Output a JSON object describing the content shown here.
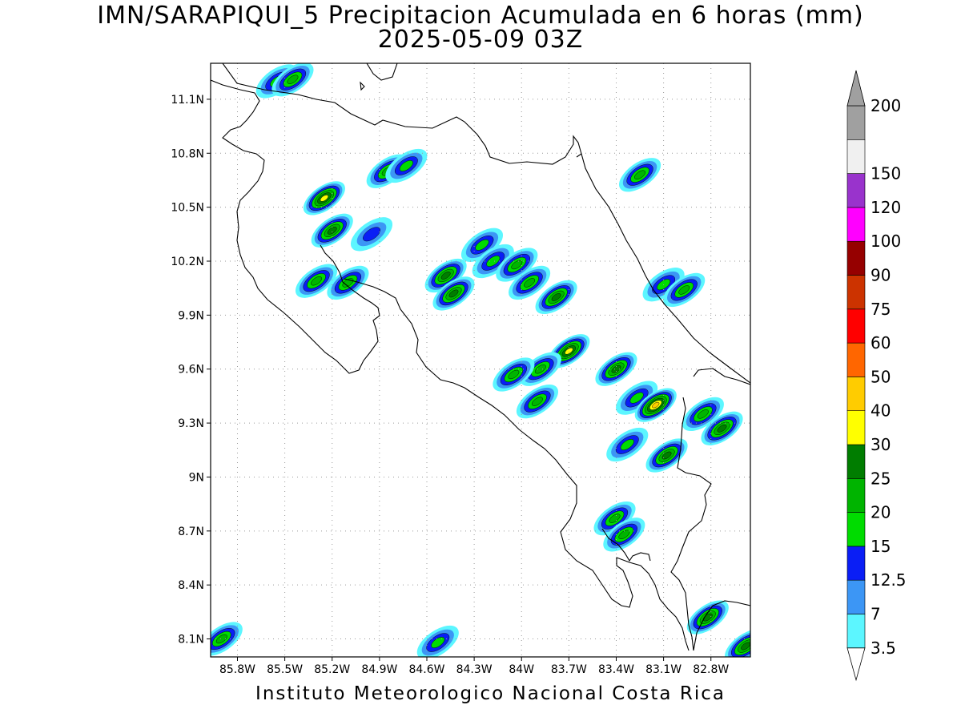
{
  "header": {
    "title": "IMN/SARAPIQUI_5 Precipitacion Acumulada en 6 horas (mm)",
    "subtitle": "2025-05-09 03Z"
  },
  "map": {
    "lat_labels": [
      "11.1N",
      "10.8N",
      "10.5N",
      "10.2N",
      "9.9N",
      "9.6N",
      "9.3N",
      "9N",
      "8.7N",
      "8.4N",
      "8.1N"
    ],
    "lat_values": [
      11.1,
      10.8,
      10.5,
      10.2,
      9.9,
      9.6,
      9.3,
      9.0,
      8.7,
      8.4,
      8.1
    ],
    "lon_labels": [
      "85.8W",
      "85.5W",
      "85.2W",
      "84.9W",
      "84.6W",
      "84.3W",
      "84W",
      "83.7W",
      "83.4W",
      "83.1W",
      "82.8W"
    ],
    "lon_values": [
      -85.8,
      -85.5,
      -85.2,
      -84.9,
      -84.6,
      -84.3,
      -84.0,
      -83.7,
      -83.4,
      -83.1,
      -82.8
    ],
    "extent": {
      "lon_min": -85.97,
      "lon_max": -82.55,
      "lat_min": 8.0,
      "lat_max": 11.3
    },
    "precip_cells": [
      {
        "lon": -85.55,
        "lat": 11.2,
        "value": 15
      },
      {
        "lon": -85.45,
        "lat": 11.21,
        "value": 20
      },
      {
        "lon": -84.85,
        "lat": 10.7,
        "value": 20
      },
      {
        "lon": -84.73,
        "lat": 10.73,
        "value": 15
      },
      {
        "lon": -85.25,
        "lat": 10.55,
        "value": 30
      },
      {
        "lon": -85.2,
        "lat": 10.37,
        "value": 25
      },
      {
        "lon": -84.95,
        "lat": 10.35,
        "value": 12.5
      },
      {
        "lon": -85.3,
        "lat": 10.09,
        "value": 20
      },
      {
        "lon": -85.1,
        "lat": 10.08,
        "value": 20
      },
      {
        "lon": -84.48,
        "lat": 10.12,
        "value": 25
      },
      {
        "lon": -84.43,
        "lat": 10.02,
        "value": 25
      },
      {
        "lon": -84.25,
        "lat": 10.29,
        "value": 15
      },
      {
        "lon": -84.18,
        "lat": 10.2,
        "value": 15
      },
      {
        "lon": -84.03,
        "lat": 10.18,
        "value": 20
      },
      {
        "lon": -83.95,
        "lat": 10.08,
        "value": 20
      },
      {
        "lon": -83.78,
        "lat": 10.0,
        "value": 25
      },
      {
        "lon": -83.7,
        "lat": 9.7,
        "value": 30
      },
      {
        "lon": -83.88,
        "lat": 9.6,
        "value": 20
      },
      {
        "lon": -84.05,
        "lat": 9.57,
        "value": 20
      },
      {
        "lon": -83.9,
        "lat": 9.42,
        "value": 20
      },
      {
        "lon": -83.4,
        "lat": 9.6,
        "value": 25
      },
      {
        "lon": -83.27,
        "lat": 9.44,
        "value": 15
      },
      {
        "lon": -83.15,
        "lat": 9.4,
        "value": 40
      },
      {
        "lon": -83.08,
        "lat": 9.12,
        "value": 25
      },
      {
        "lon": -82.85,
        "lat": 9.35,
        "value": 20
      },
      {
        "lon": -82.73,
        "lat": 9.27,
        "value": 25
      },
      {
        "lon": -83.33,
        "lat": 9.18,
        "value": 15
      },
      {
        "lon": -83.41,
        "lat": 8.77,
        "value": 20
      },
      {
        "lon": -83.35,
        "lat": 8.68,
        "value": 20
      },
      {
        "lon": -84.53,
        "lat": 8.08,
        "value": 15
      },
      {
        "lon": -85.9,
        "lat": 8.1,
        "value": 20
      },
      {
        "lon": -83.25,
        "lat": 10.68,
        "value": 20
      },
      {
        "lon": -83.1,
        "lat": 10.07,
        "value": 15
      },
      {
        "lon": -82.97,
        "lat": 10.04,
        "value": 20
      },
      {
        "lon": -82.82,
        "lat": 8.22,
        "value": 25
      },
      {
        "lon": -82.58,
        "lat": 8.06,
        "value": 25
      }
    ]
  },
  "legend": {
    "labels": [
      "3.5",
      "7",
      "12.5",
      "15",
      "20",
      "25",
      "30",
      "40",
      "50",
      "60",
      "75",
      "90",
      "100",
      "120",
      "150",
      "200"
    ],
    "colors": [
      "#5cf6ff",
      "#3c96f5",
      "#0a1ef5",
      "#00dc00",
      "#00b400",
      "#007d00",
      "#ffff00",
      "#ffcc00",
      "#ff6600",
      "#ff0000",
      "#cc3300",
      "#960000",
      "#ff00ff",
      "#9933cc",
      "#f0f0f0",
      "#a0a0a0"
    ]
  },
  "footer": {
    "credit": "Instituto Meteorologico Nacional Costa Rica"
  }
}
